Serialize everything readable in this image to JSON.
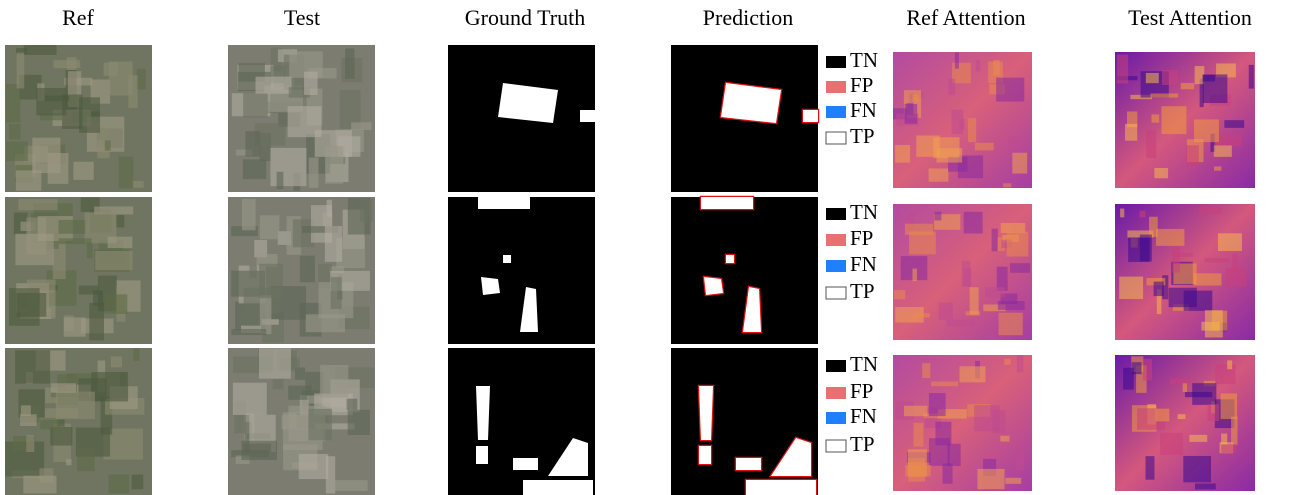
{
  "columns": [
    "Ref",
    "Test",
    "Ground Truth",
    "Prediction",
    "Ref Attention",
    "Test Attention"
  ],
  "rows": [
    {
      "legend": [
        "TN",
        "FP",
        "FN",
        "TP"
      ]
    },
    {
      "legend": [
        "TN",
        "FP",
        "FN",
        "TP"
      ]
    },
    {
      "legend": [
        "TN",
        "FP",
        "FN",
        "TP"
      ]
    }
  ]
}
